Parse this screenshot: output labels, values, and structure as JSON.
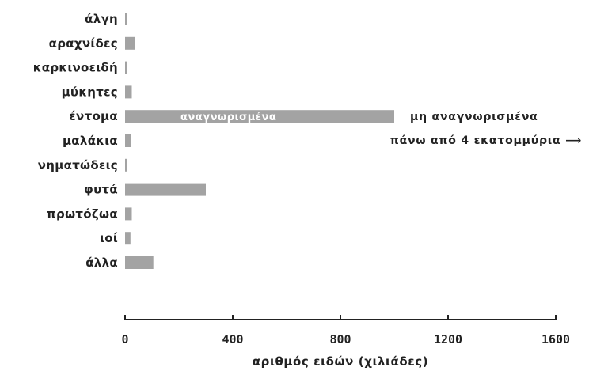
{
  "chart_data": {
    "type": "bar",
    "orientation": "horizontal",
    "categories": [
      "άλγη",
      "αραχνίδες",
      "καρκινοειδή",
      "μύκητες",
      "έντομα",
      "μαλάκια",
      "νηματώδεις",
      "φυτά",
      "πρωτόζωα",
      "ιοί",
      "άλλα"
    ],
    "series": [
      {
        "values": [
          3,
          38,
          5,
          25,
          1000,
          22,
          8,
          300,
          25,
          20,
          105
        ]
      }
    ],
    "highlight": {
      "category": "έντομα",
      "inner_label": "αναγνωρισμένα",
      "outside_label": "μη αναγνωρισμένα",
      "note": "πάνω από 4 εκατομμύρια",
      "arrow": "⟶"
    },
    "xlabel": "αριθμός ειδών (χιλιάδες)",
    "ylabel": "",
    "xlim": [
      0,
      1600
    ],
    "xticks": [
      0,
      400,
      800,
      1200,
      1600
    ],
    "grid": false,
    "colors": {
      "bar": "#a3a3a3",
      "bar_dark": "#8a8a8a",
      "axis": "#222222",
      "text": "#222222"
    }
  }
}
